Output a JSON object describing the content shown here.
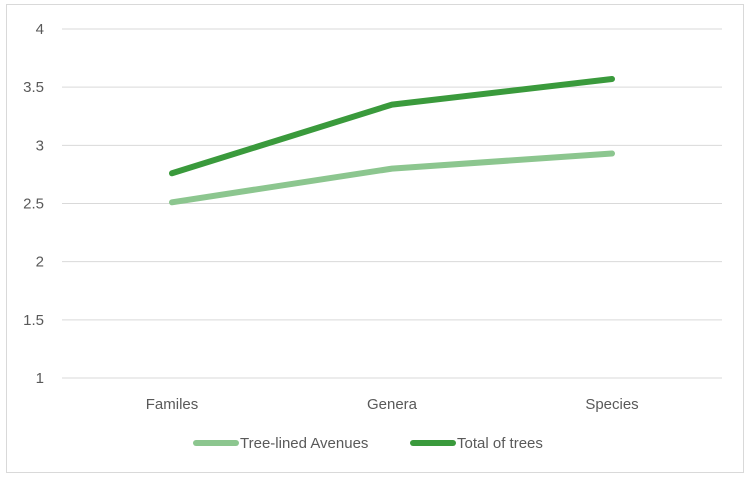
{
  "chart_data": {
    "type": "line",
    "categories": [
      "Familes",
      "Genera",
      "Species"
    ],
    "series": [
      {
        "name": "Tree-lined Avenues",
        "values": [
          2.51,
          2.8,
          2.93
        ],
        "color": "#8cc68f"
      },
      {
        "name": "Total of trees",
        "values": [
          2.76,
          3.35,
          3.57
        ],
        "color": "#3a9a3c"
      }
    ],
    "ylim": [
      1,
      4
    ],
    "yticks": [
      "1",
      "1.5",
      "2",
      "2.5",
      "3",
      "3.5",
      "4"
    ],
    "grid": true,
    "legend": "bottom",
    "colors": {
      "grid": "#d9d9d9",
      "text": "#595959",
      "border": "#d9d9d9"
    }
  }
}
